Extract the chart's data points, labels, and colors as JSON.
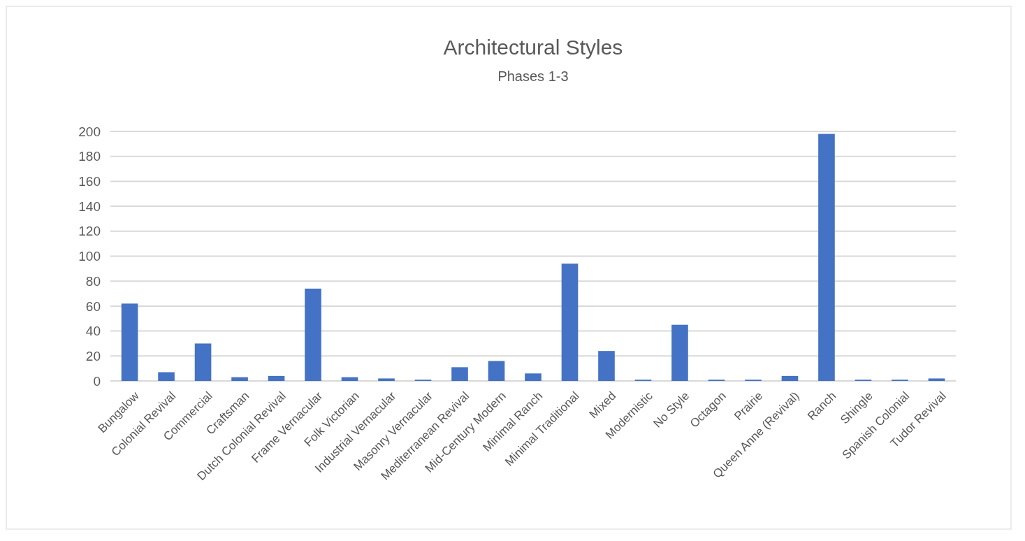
{
  "chart_data": {
    "type": "bar",
    "title": "Architectural Styles",
    "subtitle": "Phases 1-3",
    "categories": [
      "Bungalow",
      "Colonial Revival",
      "Commercial",
      "Craftsman",
      "Dutch Colonial Revival",
      "Frame Vernacular",
      "Folk Victorian",
      "Industrial Vernacular",
      "Masonry Vernacular",
      "Mediterranean Revival",
      "Mid-Century Modern",
      "Minimal Ranch",
      "Minimal Traditional",
      "Mixed",
      "Modernistic",
      "No Style",
      "Octagon",
      "Prairie",
      "Queen Anne (Revival)",
      "Ranch",
      "Shingle",
      "Spanish Colonial",
      "Tudor Revival"
    ],
    "values": [
      62,
      7,
      30,
      3,
      4,
      74,
      3,
      2,
      1,
      11,
      16,
      6,
      94,
      24,
      1,
      45,
      1,
      1,
      4,
      198,
      1,
      1,
      2
    ],
    "color": "#4472c4",
    "ylim": [
      0,
      200
    ],
    "yticks": [
      0,
      20,
      40,
      60,
      80,
      100,
      120,
      140,
      160,
      180,
      200
    ],
    "grid": "y"
  }
}
